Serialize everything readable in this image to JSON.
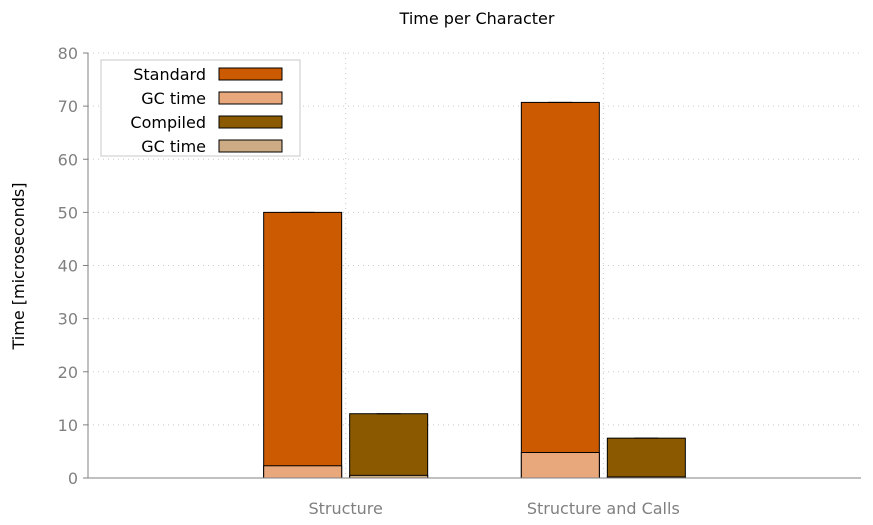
{
  "chart_data": {
    "type": "bar",
    "stacked": true,
    "title": "Time per Character",
    "xlabel": "",
    "ylabel": "Time [microseconds]",
    "ylim": [
      0,
      80
    ],
    "yticks": [
      0,
      10,
      20,
      30,
      40,
      50,
      60,
      70,
      80
    ],
    "grid": true,
    "legend_position": "top-left",
    "categories": [
      "Structure",
      "Structure and Calls"
    ],
    "series": [
      {
        "name": "Standard",
        "values": [
          50.0,
          70.7
        ],
        "color": "#cc5a00"
      },
      {
        "name": "GC time",
        "values": [
          2.3,
          4.8
        ],
        "color": "#e8a87c",
        "overlay_of": "Standard"
      },
      {
        "name": "Compiled",
        "values": [
          12.1,
          7.5
        ],
        "color": "#8b5a00"
      },
      {
        "name": "GC time",
        "values": [
          0.5,
          0.2
        ],
        "color": "#cdab84",
        "overlay_of": "Compiled"
      }
    ]
  }
}
